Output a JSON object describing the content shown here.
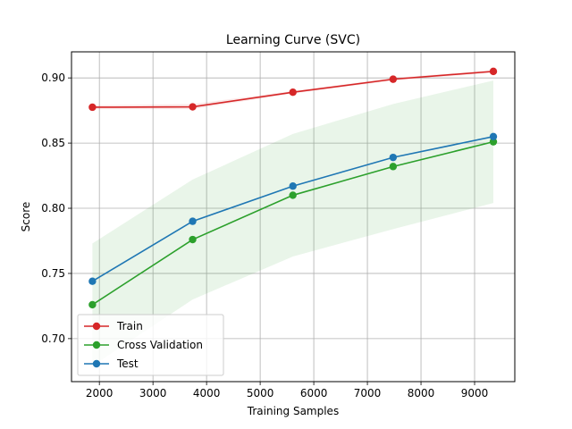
{
  "chart_data": {
    "type": "line",
    "title": "Learning Curve (SVC)",
    "xlabel": "Training Samples",
    "ylabel": "Score",
    "xlim": [
      1480,
      9750
    ],
    "ylim": [
      0.667,
      0.92
    ],
    "xticks": [
      2000,
      3000,
      4000,
      5000,
      6000,
      7000,
      8000,
      9000
    ],
    "xtick_labels": [
      "2000",
      "3000",
      "4000",
      "5000",
      "6000",
      "7000",
      "8000",
      "9000"
    ],
    "yticks": [
      0.7,
      0.75,
      0.8,
      0.85,
      0.9
    ],
    "ytick_labels": [
      "0.70",
      "0.75",
      "0.80",
      "0.85",
      "0.90"
    ],
    "grid": true,
    "legend_position": "lower-left",
    "x": [
      1870,
      3740,
      5610,
      7480,
      9350
    ],
    "series": [
      {
        "name": "Train",
        "color": "#d62728",
        "values": [
          0.8775,
          0.8778,
          0.889,
          0.899,
          0.905
        ],
        "band_upper": [
          0.879,
          0.88,
          0.89,
          0.9,
          0.906
        ],
        "band_lower": [
          0.876,
          0.876,
          0.888,
          0.898,
          0.904
        ]
      },
      {
        "name": "Cross Validation",
        "color": "#2ca02c",
        "values": [
          0.726,
          0.776,
          0.81,
          0.832,
          0.851
        ],
        "band_upper": [
          0.773,
          0.822,
          0.857,
          0.88,
          0.898
        ],
        "band_lower": [
          0.679,
          0.73,
          0.763,
          0.784,
          0.804
        ]
      },
      {
        "name": "Test",
        "color": "#1f77b4",
        "values": [
          0.744,
          0.79,
          0.817,
          0.839,
          0.855
        ]
      }
    ]
  }
}
